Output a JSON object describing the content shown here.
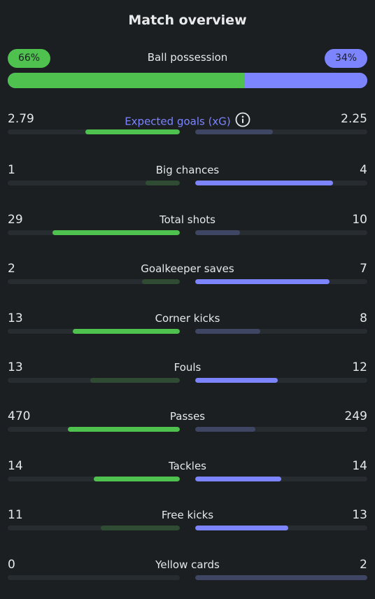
{
  "title": "Match overview",
  "possession": {
    "label": "Ball possession",
    "home": "66%",
    "away": "34%",
    "home_fraction": 0.66,
    "home_color": "#4ec14e",
    "away_color": "#7c85ff"
  },
  "stats": [
    {
      "label": "Expected goals (xG)",
      "home": "2.79",
      "away": "2.25",
      "accent": true,
      "info_icon": "info-icon",
      "home_fill": 0.55,
      "away_fill": 0.45,
      "home_strong": true,
      "away_strong": false
    },
    {
      "label": "Big chances",
      "home": "1",
      "away": "4",
      "accent": false,
      "home_fill": 0.2,
      "away_fill": 0.8,
      "home_strong": false,
      "away_strong": true
    },
    {
      "label": "Total shots",
      "home": "29",
      "away": "10",
      "accent": false,
      "home_fill": 0.74,
      "away_fill": 0.26,
      "home_strong": true,
      "away_strong": false
    },
    {
      "label": "Goalkeeper saves",
      "home": "2",
      "away": "7",
      "accent": false,
      "home_fill": 0.22,
      "away_fill": 0.78,
      "home_strong": false,
      "away_strong": true
    },
    {
      "label": "Corner kicks",
      "home": "13",
      "away": "8",
      "accent": false,
      "home_fill": 0.62,
      "away_fill": 0.38,
      "home_strong": true,
      "away_strong": false
    },
    {
      "label": "Fouls",
      "home": "13",
      "away": "12",
      "accent": false,
      "home_fill": 0.52,
      "away_fill": 0.48,
      "home_strong": false,
      "away_strong": true
    },
    {
      "label": "Passes",
      "home": "470",
      "away": "249",
      "accent": false,
      "home_fill": 0.65,
      "away_fill": 0.35,
      "home_strong": true,
      "away_strong": false
    },
    {
      "label": "Tackles",
      "home": "14",
      "away": "14",
      "accent": false,
      "home_fill": 0.5,
      "away_fill": 0.5,
      "home_strong": true,
      "away_strong": true
    },
    {
      "label": "Free kicks",
      "home": "11",
      "away": "13",
      "accent": false,
      "home_fill": 0.46,
      "away_fill": 0.54,
      "home_strong": false,
      "away_strong": true
    },
    {
      "label": "Yellow cards",
      "home": "0",
      "away": "2",
      "accent": false,
      "home_fill": 0.0,
      "away_fill": 1.0,
      "home_strong": false,
      "away_strong": false
    }
  ],
  "colors": {
    "home_strong": "#4ec14e",
    "home_weak": "#2f4b33",
    "away_strong": "#7c85ff",
    "away_weak": "#3f4663",
    "track": "#262c30"
  }
}
